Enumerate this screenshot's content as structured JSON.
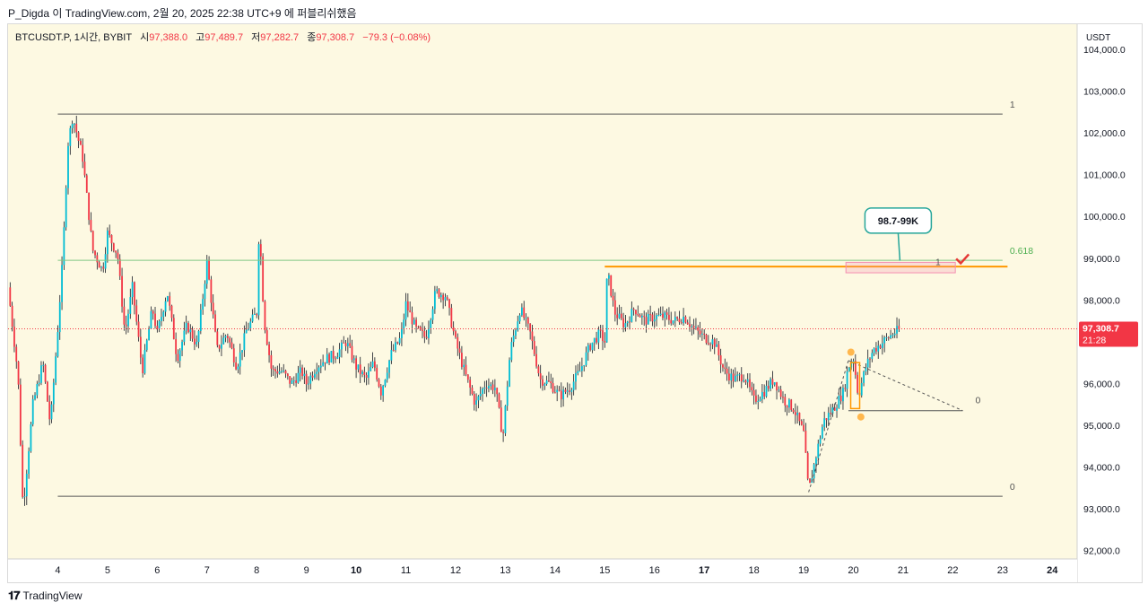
{
  "header": {
    "publish_line": "P_Digda 이 TradingView.com, 2월 20, 2025 22:38 UTC+9 에 퍼블리쉬했음"
  },
  "legend": {
    "symbol": "BTCUSDT.P, 1시간, BYBIT",
    "open_label": "시",
    "open_value": "97,388.0",
    "high_label": "고",
    "high_value": "97,489.7",
    "low_label": "저",
    "low_value": "97,282.7",
    "close_label": "종",
    "close_value": "97,308.7",
    "change": "−79.3 (−0.08%)"
  },
  "footer": {
    "brand": "TradingView"
  },
  "colors": {
    "up": "#26a69a",
    "down": "#ef5350",
    "candle_up_body": "#00bcd4",
    "candle_down_body": "#f23645",
    "fib_level": "#555555",
    "fib_618": "#81c784",
    "resistance": "#ff9800",
    "zone": "#f48fb1",
    "callout_border": "#26a69a",
    "price_badge": "#f23645",
    "background": "#fdf9e2"
  },
  "chart_data": {
    "type": "candlestick",
    "currency": "USDT",
    "ylim": [
      91800,
      104600
    ],
    "y_ticks": [
      "104,000.0",
      "103,000.0",
      "102,000.0",
      "101,000.0",
      "100,000.0",
      "99,000.0",
      "98,000.0",
      "97,000.0",
      "96,000.0",
      "95,000.0",
      "94,000.0",
      "93,000.0",
      "92,000.0"
    ],
    "x_ticks": [
      {
        "label": "4",
        "day": 4,
        "bold": false
      },
      {
        "label": "5",
        "day": 5,
        "bold": false
      },
      {
        "label": "6",
        "day": 6,
        "bold": false
      },
      {
        "label": "7",
        "day": 7,
        "bold": false
      },
      {
        "label": "8",
        "day": 8,
        "bold": false
      },
      {
        "label": "9",
        "day": 9,
        "bold": false
      },
      {
        "label": "10",
        "day": 10,
        "bold": true
      },
      {
        "label": "11",
        "day": 11,
        "bold": false
      },
      {
        "label": "12",
        "day": 12,
        "bold": false
      },
      {
        "label": "13",
        "day": 13,
        "bold": false
      },
      {
        "label": "14",
        "day": 14,
        "bold": false
      },
      {
        "label": "15",
        "day": 15,
        "bold": false
      },
      {
        "label": "16",
        "day": 16,
        "bold": false
      },
      {
        "label": "17",
        "day": 17,
        "bold": true
      },
      {
        "label": "18",
        "day": 18,
        "bold": false
      },
      {
        "label": "19",
        "day": 19,
        "bold": false
      },
      {
        "label": "20",
        "day": 20,
        "bold": false
      },
      {
        "label": "21",
        "day": 21,
        "bold": false
      },
      {
        "label": "22",
        "day": 22,
        "bold": false
      },
      {
        "label": "23",
        "day": 23,
        "bold": false
      },
      {
        "label": "24",
        "day": 24,
        "bold": true
      }
    ],
    "x_range_days": [
      3.0,
      24.5
    ],
    "path_points": [
      [
        3.0,
        98300
      ],
      [
        3.2,
        96200
      ],
      [
        3.3,
        93000
      ],
      [
        3.5,
        95500
      ],
      [
        3.7,
        96500
      ],
      [
        3.85,
        95000
      ],
      [
        4.0,
        97300
      ],
      [
        4.1,
        99000
      ],
      [
        4.2,
        101700
      ],
      [
        4.3,
        102400
      ],
      [
        4.5,
        101400
      ],
      [
        4.7,
        99200
      ],
      [
        4.9,
        98700
      ],
      [
        5.0,
        99600
      ],
      [
        5.2,
        99100
      ],
      [
        5.35,
        97200
      ],
      [
        5.5,
        98300
      ],
      [
        5.7,
        96300
      ],
      [
        5.9,
        97800
      ],
      [
        6.0,
        97200
      ],
      [
        6.2,
        98200
      ],
      [
        6.4,
        96600
      ],
      [
        6.6,
        97400
      ],
      [
        6.8,
        96900
      ],
      [
        7.0,
        98900
      ],
      [
        7.2,
        96800
      ],
      [
        7.4,
        97200
      ],
      [
        7.6,
        96400
      ],
      [
        7.8,
        97300
      ],
      [
        8.0,
        97700
      ],
      [
        8.05,
        99800
      ],
      [
        8.15,
        97500
      ],
      [
        8.3,
        96300
      ],
      [
        8.5,
        96300
      ],
      [
        8.7,
        96000
      ],
      [
        8.9,
        96300
      ],
      [
        9.0,
        96000
      ],
      [
        9.2,
        96400
      ],
      [
        9.4,
        96600
      ],
      [
        9.6,
        96700
      ],
      [
        9.8,
        97000
      ],
      [
        10.0,
        96400
      ],
      [
        10.2,
        96100
      ],
      [
        10.35,
        96500
      ],
      [
        10.5,
        95800
      ],
      [
        10.7,
        96700
      ],
      [
        10.9,
        97100
      ],
      [
        11.0,
        97900
      ],
      [
        11.2,
        97300
      ],
      [
        11.4,
        97100
      ],
      [
        11.6,
        98200
      ],
      [
        11.8,
        98100
      ],
      [
        12.0,
        97000
      ],
      [
        12.2,
        96200
      ],
      [
        12.4,
        95500
      ],
      [
        12.6,
        96000
      ],
      [
        12.8,
        95900
      ],
      [
        12.95,
        94700
      ],
      [
        13.1,
        96800
      ],
      [
        13.3,
        97800
      ],
      [
        13.5,
        97200
      ],
      [
        13.7,
        96100
      ],
      [
        13.9,
        96000
      ],
      [
        14.1,
        95700
      ],
      [
        14.3,
        95900
      ],
      [
        14.5,
        96300
      ],
      [
        14.7,
        96900
      ],
      [
        14.9,
        97200
      ],
      [
        15.0,
        97000
      ],
      [
        15.05,
        98700
      ],
      [
        15.2,
        97700
      ],
      [
        15.4,
        97400
      ],
      [
        15.6,
        97800
      ],
      [
        15.8,
        97500
      ],
      [
        16.0,
        97600
      ],
      [
        16.2,
        97600
      ],
      [
        16.4,
        97500
      ],
      [
        16.6,
        97600
      ],
      [
        16.8,
        97300
      ],
      [
        17.0,
        97100
      ],
      [
        17.2,
        97000
      ],
      [
        17.4,
        96300
      ],
      [
        17.6,
        96100
      ],
      [
        17.8,
        96200
      ],
      [
        18.0,
        95600
      ],
      [
        18.2,
        95800
      ],
      [
        18.4,
        96100
      ],
      [
        18.6,
        95600
      ],
      [
        18.8,
        95400
      ],
      [
        19.0,
        94800
      ],
      [
        19.1,
        93400
      ],
      [
        19.2,
        94000
      ],
      [
        19.4,
        95100
      ],
      [
        19.6,
        95400
      ],
      [
        19.8,
        95800
      ],
      [
        19.9,
        96400
      ],
      [
        20.0,
        96600
      ],
      [
        20.1,
        95700
      ],
      [
        20.25,
        96400
      ],
      [
        20.4,
        96800
      ],
      [
        20.6,
        97000
      ],
      [
        20.8,
        97200
      ],
      [
        20.95,
        97300
      ]
    ],
    "levels": [
      {
        "name": "fib-1-top",
        "y": 102450,
        "x_start": 4.0,
        "x_end": 23.0,
        "label": "1",
        "color": "#555555"
      },
      {
        "name": "fib-0-bottom",
        "y": 93300,
        "x_start": 4.0,
        "x_end": 23.0,
        "label": "0",
        "color": "#555555"
      },
      {
        "name": "fib-0618",
        "y": 98950,
        "x_start": 4.0,
        "x_end": 23.0,
        "label": "0.618",
        "color": "#81c784"
      },
      {
        "name": "resistance-line",
        "y": 98800,
        "x_start": 15.0,
        "x_end": 23.1,
        "label": "",
        "color": "#ff9800"
      }
    ],
    "zone": {
      "y_low": 98650,
      "y_high": 98900,
      "x_start": 19.85,
      "x_end": 22.05,
      "inner_label": "1"
    },
    "callout": {
      "text": "98.7-99K",
      "x": 20.9,
      "y": 99900
    },
    "last_price": "97,308.7",
    "countdown": "21:28",
    "last_price_value": 97308.7,
    "small_fib": {
      "top_y": 96550,
      "bottom_y": 95350,
      "x_start": 19.9,
      "x_end": 22.2,
      "label": "0"
    }
  }
}
